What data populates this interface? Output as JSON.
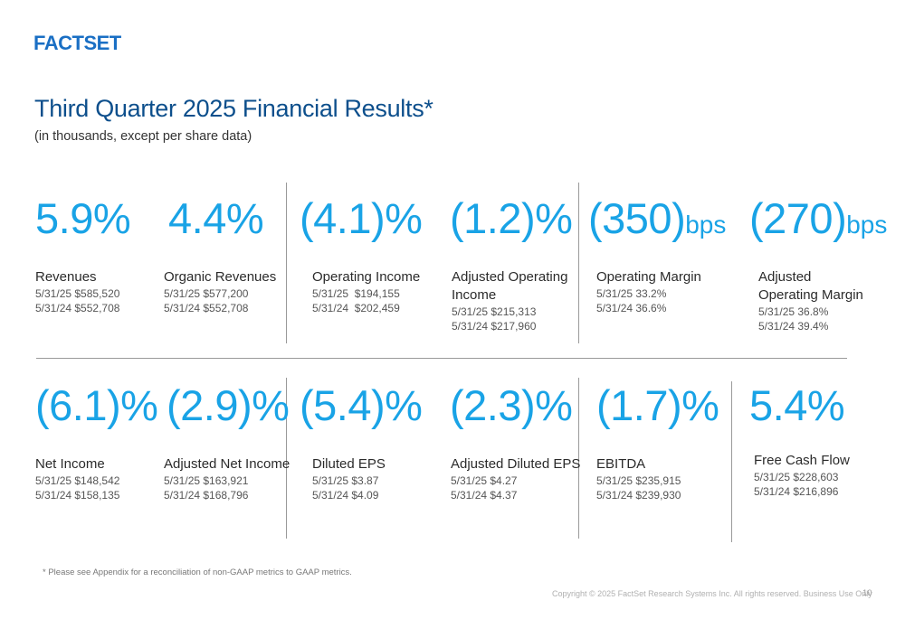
{
  "brand": {
    "logo_text": "FACTSET",
    "color": "#1a6fc4"
  },
  "header": {
    "title": "Third Quarter 2025 Financial Results*",
    "subtitle": "(in thousands, except per share data)"
  },
  "colors": {
    "accent": "#19a3e6",
    "title": "#0d4f8c"
  },
  "metrics_top": [
    {
      "value": "5.9%",
      "unit": "",
      "label": "Revenues",
      "line1": "5/31/25 $585,520",
      "line2": "5/31/24 $552,708"
    },
    {
      "value": "4.4%",
      "unit": "",
      "label": "Organic Revenues",
      "line1": "5/31/25 $577,200",
      "line2": "5/31/24 $552,708"
    },
    {
      "value": "(4.1)%",
      "unit": "",
      "label": "Operating Income",
      "line1": "5/31/25  $194,155",
      "line2": "5/31/24  $202,459"
    },
    {
      "value": "(1.2)%",
      "unit": "",
      "label": "Adjusted Operating Income",
      "line1": "5/31/25 $215,313",
      "line2": "5/31/24 $217,960"
    },
    {
      "value": "(350)",
      "unit": "bps",
      "label": "Operating Margin",
      "line1": "5/31/25 33.2%",
      "line2": "5/31/24 36.6%"
    },
    {
      "value": "(270)",
      "unit": "bps",
      "label": "Adjusted Operating Margin",
      "line1": "5/31/25 36.8%",
      "line2": "5/31/24 39.4%"
    }
  ],
  "metrics_bottom": [
    {
      "value": "(6.1)%",
      "unit": "",
      "label": "Net Income",
      "line1": "5/31/25 $148,542",
      "line2": "5/31/24 $158,135"
    },
    {
      "value": "(2.9)%",
      "unit": "",
      "label": "Adjusted Net Income",
      "line1": "5/31/25 $163,921",
      "line2": "5/31/24 $168,796"
    },
    {
      "value": "(5.4)%",
      "unit": "",
      "label": "Diluted EPS",
      "line1": "5/31/25 $3.87",
      "line2": "5/31/24 $4.09"
    },
    {
      "value": "(2.3)%",
      "unit": "",
      "label": "Adjusted Diluted EPS",
      "line1": "5/31/25 $4.27",
      "line2": "5/31/24 $4.37"
    },
    {
      "value": "(1.7)%",
      "unit": "",
      "label": "EBITDA",
      "line1": "5/31/25 $235,915",
      "line2": "5/31/24 $239,930"
    },
    {
      "value": "5.4%",
      "unit": "",
      "label": "Free Cash Flow",
      "line1": "5/31/25 $228,603",
      "line2": "5/31/24 $216,896"
    }
  ],
  "footer": {
    "footnote": "* Please see Appendix for a reconciliation of non-GAAP metrics to GAAP metrics.",
    "copyright": "Copyright © 2025 FactSet Research Systems Inc. All rights reserved. Business Use Only",
    "page_number": "10"
  }
}
